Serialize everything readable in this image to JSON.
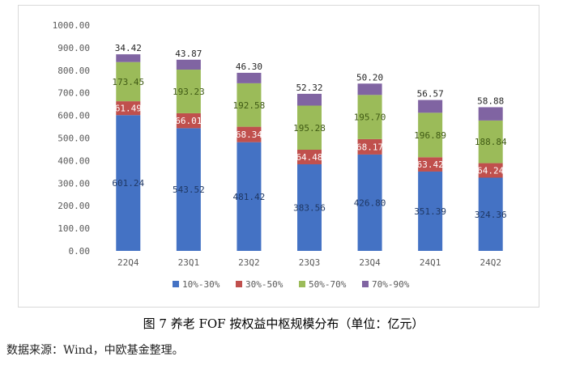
{
  "chart_data": {
    "type": "bar",
    "stacked": true,
    "categories": [
      "22Q4",
      "23Q1",
      "23Q2",
      "23Q3",
      "23Q4",
      "24Q1",
      "24Q2"
    ],
    "series": [
      {
        "name": "10%-30%",
        "color": "#4472c4",
        "label_color": "#1f3864",
        "values": [
          601.24,
          543.52,
          481.42,
          383.56,
          426.8,
          351.39,
          324.36
        ],
        "labels": [
          "601.24",
          "543.52",
          "481.42",
          "383.56",
          "426.80",
          "351.39",
          "324.36"
        ]
      },
      {
        "name": "30%-50%",
        "color": "#c0504d",
        "label_color": "#ffffff",
        "values": [
          61.49,
          66.01,
          68.34,
          64.48,
          68.17,
          63.42,
          64.24
        ],
        "labels": [
          "61.49",
          "66.01",
          "68.34",
          "64.48",
          "68.17",
          "63.42",
          "64.24"
        ]
      },
      {
        "name": "50%-70%",
        "color": "#9bbb59",
        "label_color": "#3f5a14",
        "values": [
          173.45,
          193.23,
          192.58,
          195.28,
          195.7,
          196.89,
          188.84
        ],
        "labels": [
          "173.45",
          "193.23",
          "192.58",
          "195.28",
          "195.70",
          "196.89",
          "188.84"
        ]
      },
      {
        "name": "70%-90%",
        "color": "#8064a2",
        "label_color": "#262626",
        "values": [
          34.42,
          43.87,
          46.3,
          52.32,
          50.2,
          56.57,
          58.88
        ],
        "labels": [
          "34.42",
          "43.87",
          "46.30",
          "52.32",
          "50.20",
          "56.57",
          "58.88"
        ]
      }
    ],
    "ylim": [
      0,
      1000
    ],
    "yticks": [
      "0.00",
      "100.00",
      "200.00",
      "300.00",
      "400.00",
      "500.00",
      "600.00",
      "700.00",
      "800.00",
      "900.00",
      "1000.00"
    ],
    "ytick_values": [
      0,
      100,
      200,
      300,
      400,
      500,
      600,
      700,
      800,
      900,
      1000
    ],
    "grid": false,
    "legend_position": "bottom"
  },
  "caption": "图 7  养老 FOF 按权益中枢规模分布（单位：亿元）",
  "source": "数据来源：Wind，中欧基金整理。"
}
